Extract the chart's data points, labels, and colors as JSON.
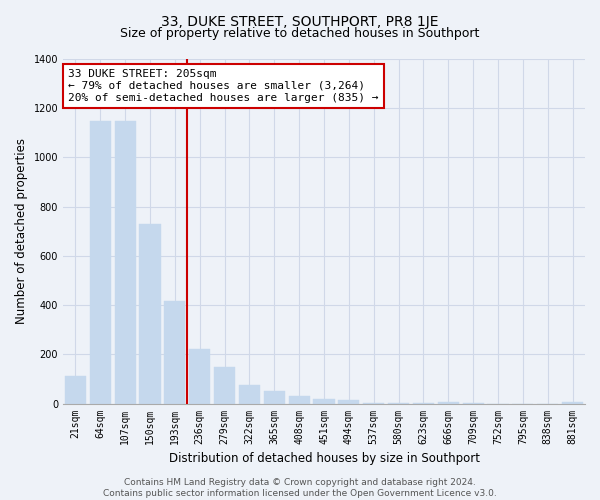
{
  "title": "33, DUKE STREET, SOUTHPORT, PR8 1JE",
  "subtitle": "Size of property relative to detached houses in Southport",
  "xlabel": "Distribution of detached houses by size in Southport",
  "ylabel": "Number of detached properties",
  "categories": [
    "21sqm",
    "64sqm",
    "107sqm",
    "150sqm",
    "193sqm",
    "236sqm",
    "279sqm",
    "322sqm",
    "365sqm",
    "408sqm",
    "451sqm",
    "494sqm",
    "537sqm",
    "580sqm",
    "623sqm",
    "666sqm",
    "709sqm",
    "752sqm",
    "795sqm",
    "838sqm",
    "881sqm"
  ],
  "values": [
    110,
    1150,
    1150,
    730,
    415,
    220,
    148,
    75,
    50,
    32,
    20,
    15,
    2,
    2,
    2,
    5,
    2,
    0,
    0,
    0,
    5
  ],
  "bar_color": "#c5d8ed",
  "vline_x": 4.5,
  "vline_color": "#cc0000",
  "annotation_line1": "33 DUKE STREET: 205sqm",
  "annotation_line2": "← 79% of detached houses are smaller (3,264)",
  "annotation_line3": "20% of semi-detached houses are larger (835) →",
  "annotation_box_color": "#ffffff",
  "annotation_box_edgecolor": "#cc0000",
  "ylim": [
    0,
    1400
  ],
  "yticks": [
    0,
    200,
    400,
    600,
    800,
    1000,
    1200,
    1400
  ],
  "footer_text": "Contains HM Land Registry data © Crown copyright and database right 2024.\nContains public sector information licensed under the Open Government Licence v3.0.",
  "bg_color": "#eef2f8",
  "plot_bg_color": "#eef2f8",
  "grid_color": "#d0d8e8",
  "title_fontsize": 10,
  "subtitle_fontsize": 9,
  "axis_label_fontsize": 8.5,
  "tick_fontsize": 7,
  "annotation_fontsize": 8,
  "footer_fontsize": 6.5
}
